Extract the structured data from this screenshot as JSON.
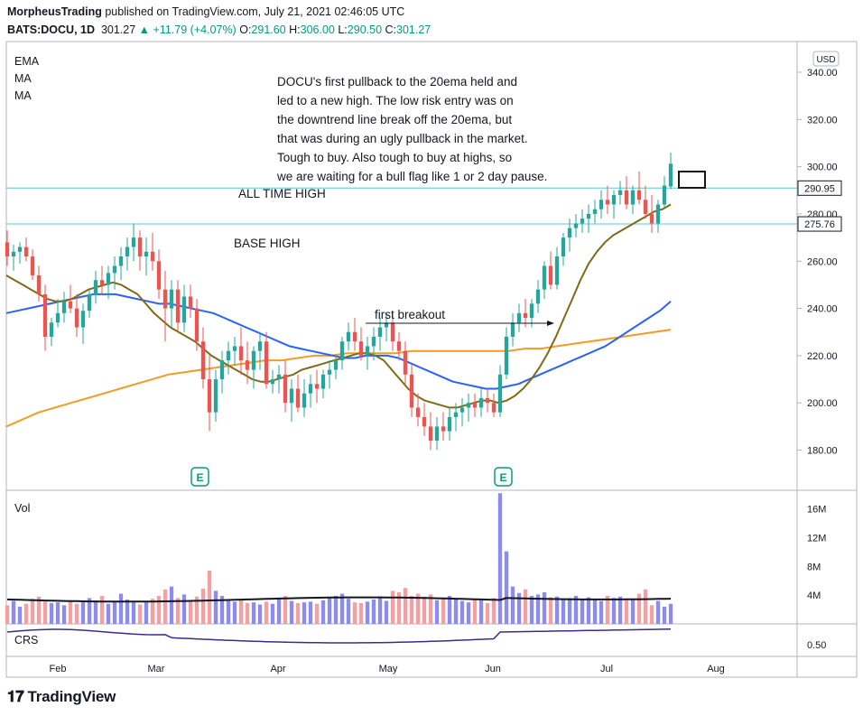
{
  "header": {
    "author": "MorpheusTrading",
    "published_text": "published on TradingView.com, July 21, 2021 02:46:05 UTC",
    "symbol": "BATS:DOCU, 1D",
    "last": "301.27",
    "change": "+11.79 (+4.07%)",
    "o_label": "O:",
    "o": "291.60",
    "h_label": "H:",
    "h": "306.00",
    "l_label": "L:",
    "l": "290.50",
    "c_label": "C:",
    "c": "301.27"
  },
  "indicators": [
    "EMA",
    "MA",
    "MA"
  ],
  "currency": "USD",
  "annotations": {
    "note_lines": [
      "DOCU's first pullback to the 20ema held and",
      "led  to a new high.  The low risk entry was on",
      "the downtrend line break off the 20ema, but",
      "that was during an ugly pullback in the market.",
      "Tough to buy.  Also tough to buy at highs, so",
      "we are waiting for a bull flag like 1 or 2 day pause."
    ],
    "all_time_high": "ALL TIME HIGH",
    "base_high": "BASE HIGH",
    "first_breakout": "first breakout"
  },
  "volume_label": "Vol",
  "crs_label": "CRS",
  "earnings_marker": "E",
  "footer_logo": "TradingView",
  "colors": {
    "up": "#26a69a",
    "up_dark": "#089981",
    "down": "#ef5350",
    "ema20": "#7f6a16",
    "ma50": "#2962ff",
    "ma200": "#f59a23",
    "hline": "#5cc8d8",
    "vol_up": "#8c8cf0",
    "vol_down": "#f4a0a0"
  },
  "chart_data": {
    "type": "candlestick",
    "x_ticks": [
      "Feb",
      "Mar",
      "Apr",
      "May",
      "Jun",
      "Jul",
      "Aug"
    ],
    "price_axis": {
      "ticks": [
        "340.00",
        "320.00",
        "300.00",
        "280.00",
        "260.00",
        "240.00",
        "220.00",
        "200.00",
        "180.00"
      ],
      "range": [
        163,
        353
      ]
    },
    "price_labels": [
      {
        "value": 290.95,
        "text": "290.95"
      },
      {
        "value": 275.76,
        "text": "275.76"
      }
    ],
    "horizontal_lines": [
      290.95,
      275.76
    ],
    "volume_axis": {
      "ticks": [
        "16M",
        "12M",
        "8M",
        "4M"
      ],
      "range": [
        0,
        18.6
      ]
    },
    "crs_axis": {
      "ticks": [
        "0.50"
      ]
    },
    "price_ohlc": [
      [
        268,
        273,
        258,
        262
      ],
      [
        262,
        267,
        256,
        264
      ],
      [
        264,
        268,
        259,
        266
      ],
      [
        266,
        270,
        260,
        262
      ],
      [
        262,
        265,
        252,
        254
      ],
      [
        254,
        258,
        243,
        246
      ],
      [
        246,
        250,
        222,
        228
      ],
      [
        228,
        236,
        224,
        234
      ],
      [
        234,
        244,
        232,
        238
      ],
      [
        238,
        247,
        234,
        243
      ],
      [
        243,
        250,
        238,
        240
      ],
      [
        240,
        246,
        228,
        232
      ],
      [
        232,
        242,
        225,
        239
      ],
      [
        239,
        248,
        236,
        246
      ],
      [
        246,
        256,
        242,
        252
      ],
      [
        252,
        258,
        246,
        250
      ],
      [
        250,
        258,
        244,
        255
      ],
      [
        255,
        262,
        248,
        258
      ],
      [
        258,
        266,
        252,
        262
      ],
      [
        262,
        270,
        256,
        266
      ],
      [
        266,
        276,
        260,
        270
      ],
      [
        270,
        273,
        256,
        262
      ],
      [
        262,
        270,
        254,
        264
      ],
      [
        264,
        272,
        256,
        260
      ],
      [
        260,
        265,
        244,
        248
      ],
      [
        248,
        256,
        226,
        240
      ],
      [
        240,
        252,
        232,
        248
      ],
      [
        248,
        252,
        230,
        234
      ],
      [
        234,
        250,
        230,
        245
      ],
      [
        245,
        250,
        236,
        240
      ],
      [
        240,
        244,
        222,
        226
      ],
      [
        226,
        232,
        206,
        210
      ],
      [
        210,
        220,
        188,
        196
      ],
      [
        196,
        214,
        192,
        210
      ],
      [
        210,
        222,
        204,
        218
      ],
      [
        218,
        226,
        212,
        222
      ],
      [
        222,
        228,
        216,
        224
      ],
      [
        224,
        232,
        212,
        218
      ],
      [
        218,
        226,
        208,
        214
      ],
      [
        214,
        224,
        206,
        222
      ],
      [
        222,
        230,
        214,
        226
      ],
      [
        226,
        230,
        206,
        208
      ],
      [
        208,
        214,
        204,
        210
      ],
      [
        210,
        216,
        204,
        212
      ],
      [
        212,
        218,
        196,
        200
      ],
      [
        200,
        210,
        192,
        206
      ],
      [
        206,
        212,
        196,
        198
      ],
      [
        198,
        210,
        194,
        204
      ],
      [
        204,
        212,
        198,
        208
      ],
      [
        208,
        214,
        200,
        206
      ],
      [
        206,
        214,
        202,
        212
      ],
      [
        212,
        218,
        206,
        214
      ],
      [
        214,
        220,
        210,
        218
      ],
      [
        218,
        228,
        214,
        226
      ],
      [
        226,
        234,
        222,
        230
      ],
      [
        230,
        236,
        222,
        226
      ],
      [
        226,
        232,
        218,
        220
      ],
      [
        220,
        228,
        214,
        224
      ],
      [
        224,
        232,
        218,
        228
      ],
      [
        228,
        236,
        222,
        232
      ],
      [
        232,
        238,
        226,
        234
      ],
      [
        234,
        238,
        222,
        226
      ],
      [
        226,
        230,
        218,
        222
      ],
      [
        222,
        226,
        208,
        212
      ],
      [
        212,
        216,
        194,
        198
      ],
      [
        198,
        204,
        190,
        194
      ],
      [
        194,
        200,
        186,
        190
      ],
      [
        190,
        196,
        180,
        184
      ],
      [
        184,
        194,
        180,
        190
      ],
      [
        190,
        196,
        184,
        188
      ],
      [
        188,
        198,
        184,
        194
      ],
      [
        194,
        200,
        188,
        196
      ],
      [
        196,
        202,
        190,
        198
      ],
      [
        198,
        204,
        192,
        200
      ],
      [
        200,
        204,
        194,
        198
      ],
      [
        198,
        206,
        194,
        202
      ],
      [
        202,
        206,
        196,
        200
      ],
      [
        200,
        204,
        194,
        196
      ],
      [
        196,
        216,
        194,
        212
      ],
      [
        212,
        232,
        210,
        228
      ],
      [
        228,
        238,
        224,
        234
      ],
      [
        234,
        242,
        230,
        238
      ],
      [
        238,
        244,
        232,
        236
      ],
      [
        236,
        244,
        232,
        242
      ],
      [
        242,
        252,
        238,
        248
      ],
      [
        248,
        260,
        244,
        258
      ],
      [
        258,
        264,
        248,
        250
      ],
      [
        250,
        266,
        248,
        262
      ],
      [
        262,
        272,
        258,
        270
      ],
      [
        270,
        278,
        264,
        274
      ],
      [
        274,
        280,
        270,
        276
      ],
      [
        276,
        282,
        272,
        278
      ],
      [
        278,
        284,
        272,
        280
      ],
      [
        280,
        286,
        276,
        282
      ],
      [
        282,
        290,
        278,
        286
      ],
      [
        286,
        292,
        280,
        284
      ],
      [
        284,
        290,
        278,
        288
      ],
      [
        288,
        294,
        284,
        290
      ],
      [
        290,
        296,
        282,
        284
      ],
      [
        284,
        292,
        280,
        290
      ],
      [
        290,
        298,
        284,
        286
      ],
      [
        286,
        292,
        278,
        280
      ],
      [
        280,
        288,
        272,
        276
      ],
      [
        276,
        286,
        272,
        284
      ],
      [
        284,
        296,
        282,
        292
      ],
      [
        291.6,
        306,
        290.5,
        301.27
      ]
    ],
    "ema20": [
      254,
      252,
      250,
      248,
      246,
      244,
      243,
      243,
      244,
      246,
      248,
      249,
      250,
      251,
      250,
      248,
      246,
      242,
      238,
      235,
      232,
      230,
      228,
      226,
      223,
      220,
      218,
      216,
      214,
      212,
      210,
      209,
      209,
      210,
      211,
      212,
      214,
      215,
      216,
      217,
      218,
      219,
      220,
      221,
      221,
      220,
      218,
      214,
      210,
      206,
      203,
      201,
      200,
      199,
      198,
      198,
      199,
      200,
      201,
      201,
      200,
      201,
      203,
      206,
      210,
      215,
      221,
      228,
      236,
      244,
      252,
      259,
      264,
      268,
      271,
      273,
      275,
      277,
      279,
      281,
      282,
      284
    ],
    "ma50": [
      238,
      239,
      240,
      241,
      242,
      243,
      244,
      245,
      246,
      246,
      246,
      245,
      244,
      243,
      242,
      242,
      241,
      240,
      239,
      238,
      236,
      234,
      232,
      230,
      228,
      226,
      224,
      223,
      222,
      221,
      220,
      219,
      219,
      220,
      220,
      220,
      219,
      217,
      215,
      213,
      211,
      209,
      208,
      207,
      206,
      206,
      207,
      208,
      210,
      212,
      214,
      216,
      218,
      220,
      222,
      224,
      227,
      230,
      233,
      236,
      239,
      243
    ],
    "ma200": [
      190,
      193,
      196,
      198,
      200,
      202,
      204,
      206,
      208,
      210,
      212,
      213,
      214,
      215,
      216,
      217,
      218,
      218,
      219,
      220,
      220,
      221,
      221,
      221,
      221,
      222,
      222,
      222,
      222,
      222,
      222,
      222,
      223,
      223,
      224,
      225,
      226,
      227,
      228,
      229,
      230,
      231
    ]
  }
}
